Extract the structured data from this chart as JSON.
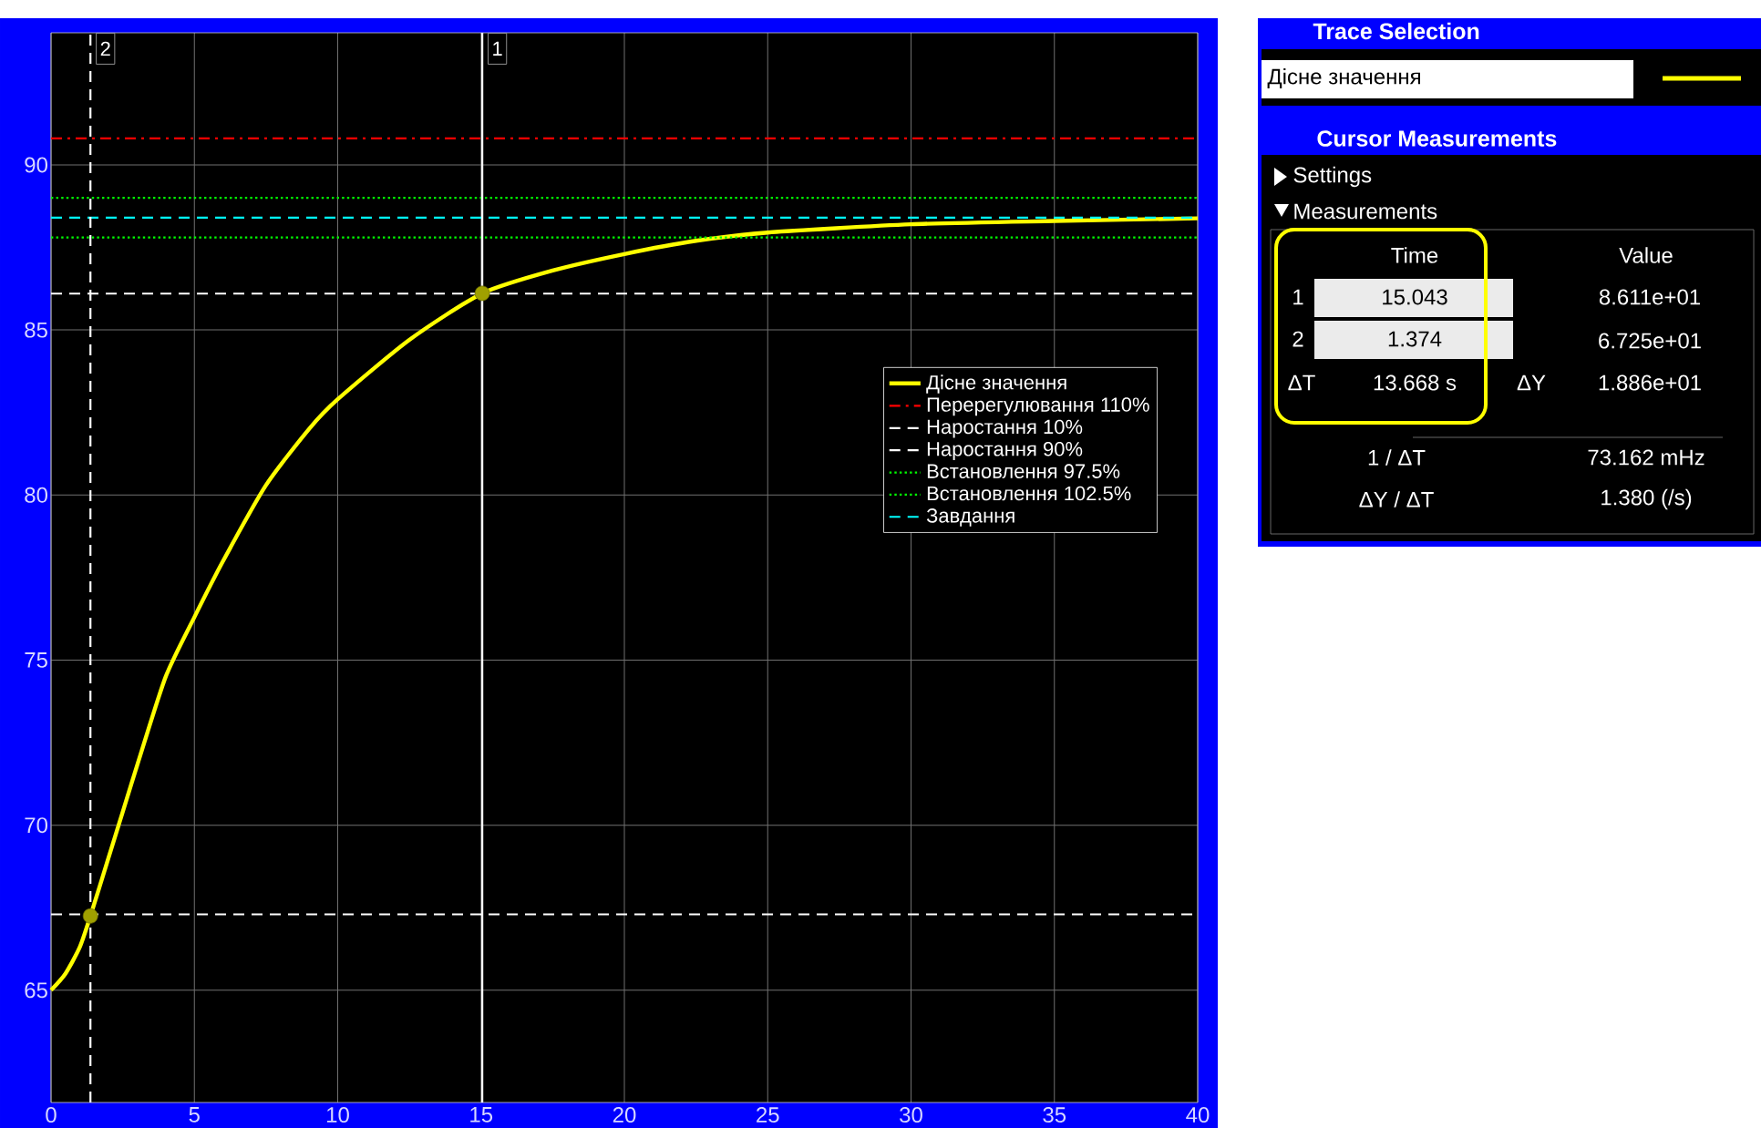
{
  "chart_data": {
    "type": "line",
    "x": [
      0,
      0.5,
      1,
      1.374,
      2,
      2.5,
      3,
      4,
      5,
      6,
      7.5,
      9,
      10,
      12.5,
      15.043,
      17.5,
      20,
      22.5,
      25,
      30,
      35,
      40
    ],
    "series": [
      {
        "name": "Дісне значення",
        "color": "#ffff00",
        "values": [
          65,
          65.5,
          66.3,
          67.25,
          69,
          70.4,
          71.8,
          74.5,
          76.3,
          78.0,
          80.3,
          82.0,
          82.9,
          84.7,
          86.11,
          86.8,
          87.3,
          87.7,
          87.95,
          88.2,
          88.3,
          88.38
        ]
      },
      {
        "type": "scatter",
        "color": "#a0a000",
        "x": [
          1.374,
          15.043
        ],
        "values": [
          67.25,
          86.11
        ]
      }
    ],
    "xlim": [
      0,
      40
    ],
    "ylim": [
      61.6,
      94
    ],
    "xticks": [
      0,
      5,
      10,
      15,
      20,
      25,
      30,
      35,
      40
    ],
    "yticks": [
      65,
      70,
      75,
      80,
      85,
      90
    ],
    "grid": true,
    "legend": "right",
    "line_style": "solid",
    "ref_lines": [
      {
        "axis": "y",
        "value": 90.8,
        "label": "Перерегулювання 110%",
        "color": "#ff0000",
        "line_style": "dashdot"
      },
      {
        "axis": "y",
        "value": 67.3,
        "label": "Наростання 10%",
        "color": "#ffffff",
        "line_style": "dashed"
      },
      {
        "axis": "y",
        "value": 86.1,
        "label": "Наростання 90%",
        "color": "#ffffff",
        "line_style": "dashed"
      },
      {
        "axis": "y",
        "value": 87.8,
        "label": "Встановлення  97.5%",
        "color": "#00ff00",
        "line_style": "dotted"
      },
      {
        "axis": "y",
        "value": 89.0,
        "label": "Встановлення  102.5%",
        "color": "#00ff00",
        "line_style": "dotted"
      },
      {
        "axis": "y",
        "value": 88.4,
        "label": "Завдання",
        "color": "#00ffff",
        "line_style": "dashed"
      },
      {
        "axis": "x",
        "value": 1.374,
        "color": "#ffffff",
        "line_style": "dashed"
      },
      {
        "axis": "x",
        "value": 15.043,
        "color": "#ffffff",
        "line_style": "solid"
      }
    ],
    "annotations": [
      "Trace Selection",
      "Дісне значення",
      "Cursor Measurements",
      "Settings",
      "Measurements",
      "Time",
      "Value",
      "1",
      "15.043",
      "8.611e+01",
      "2",
      "1.374",
      "6.725e+01",
      "ΔT",
      "13.668 s",
      "ΔY",
      "1.886e+01",
      "1 / ΔT",
      "73.162 mHz",
      "ΔY / ΔT",
      "1.380 (/s)",
      {
        "text": "2",
        "x": 1.374,
        "y": 94
      },
      {
        "text": "1",
        "x": 15.043,
        "y": 94
      }
    ]
  }
}
